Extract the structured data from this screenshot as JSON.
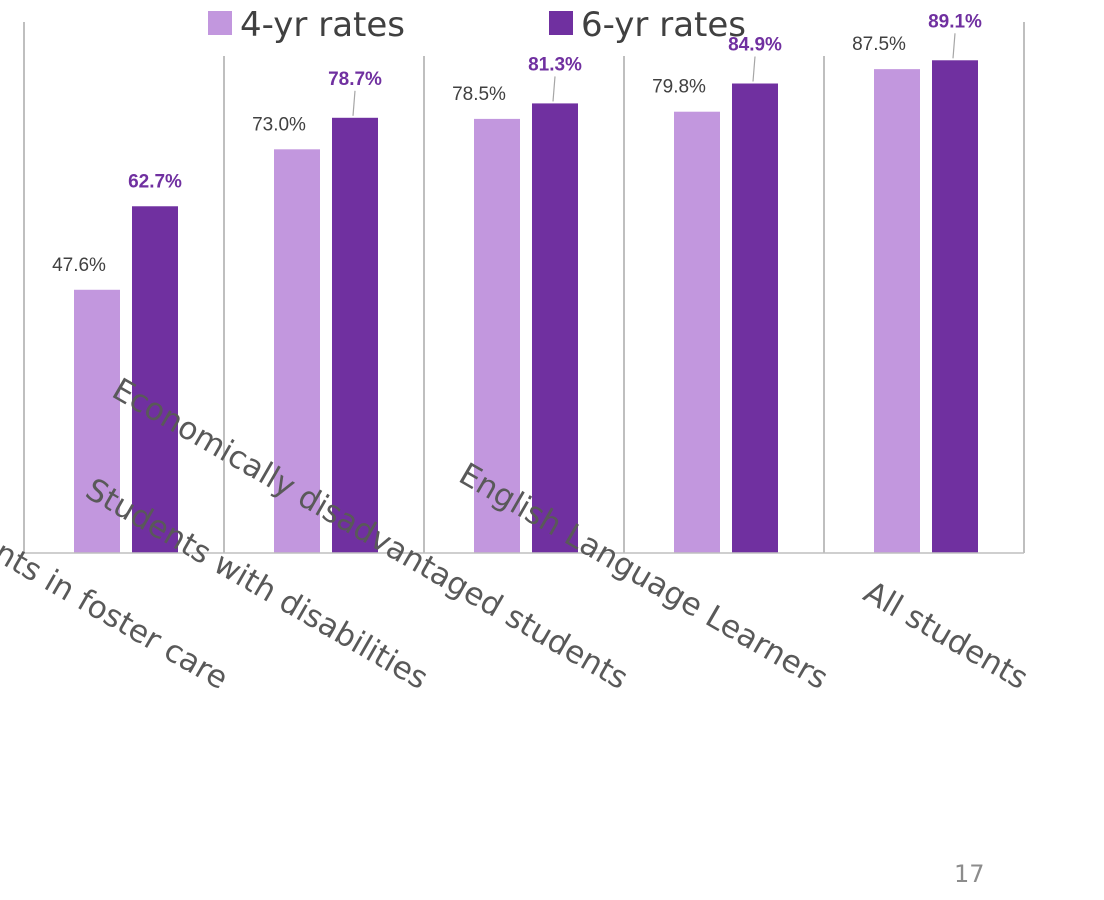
{
  "chart_data": {
    "type": "bar",
    "title": "",
    "xlabel": "",
    "ylabel": "",
    "ylim": [
      0,
      100
    ],
    "grid": false,
    "legend_position": "top",
    "categories": [
      "Students in foster care",
      "Students with disabilities",
      "Economically disadvantaged students",
      "English Language Learners",
      "All students"
    ],
    "series": [
      {
        "name": "4-yr rates",
        "color": "#c297de",
        "values": [
          47.6,
          73.0,
          78.5,
          79.8,
          87.5
        ],
        "labels": [
          "47.6%",
          "73.0%",
          "78.5%",
          "79.8%",
          "87.5%"
        ]
      },
      {
        "name": "6-yr rates",
        "color": "#7030a0",
        "values": [
          62.7,
          78.7,
          81.3,
          84.9,
          89.1
        ],
        "labels": [
          "62.7%",
          "78.7%",
          "81.3%",
          "84.9%",
          "89.1%"
        ]
      }
    ]
  },
  "page_number": "17"
}
